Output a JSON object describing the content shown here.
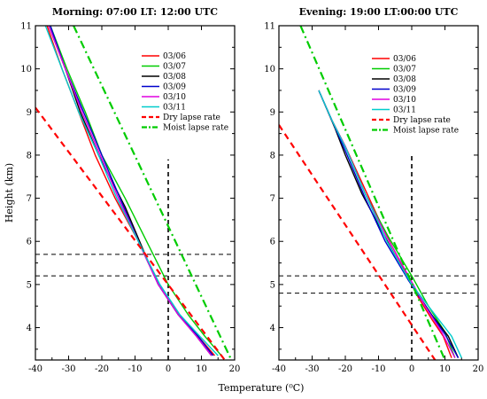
{
  "figure": {
    "xlabel": "Temperature (⁰C)",
    "ylabel": "Height (km)"
  },
  "chart_data": [
    {
      "type": "line",
      "title": "Morning: 07:00 LT: 12:00 UTC",
      "xlim": [
        -40,
        20
      ],
      "ylim": [
        3.25,
        11
      ],
      "xticks": [
        -40,
        -30,
        -20,
        -10,
        0,
        10,
        20
      ],
      "yticks": [
        4,
        5,
        6,
        7,
        8,
        9,
        10,
        11
      ],
      "xlabel": "Temperature (⁰C)",
      "ylabel": "Height (km)",
      "legend_position": "top-right",
      "grid": false,
      "series": [
        {
          "name": "03/06",
          "color": "#ff0000",
          "dash": "solid",
          "points": [
            [
              -36.5,
              11
            ],
            [
              -32,
              10
            ],
            [
              -27,
              9
            ],
            [
              -22,
              8
            ],
            [
              -16,
              7
            ],
            [
              -9,
              6
            ],
            [
              -3,
              5
            ],
            [
              3,
              4.3
            ],
            [
              9,
              3.8
            ],
            [
              14,
              3.35
            ]
          ]
        },
        {
          "name": "03/07",
          "color": "#00cc00",
          "dash": "solid",
          "points": [
            [
              -35.5,
              11
            ],
            [
              -30.5,
              10
            ],
            [
              -25,
              9
            ],
            [
              -20,
              8
            ],
            [
              -13,
              7
            ],
            [
              -6.5,
              6
            ],
            [
              0,
              5
            ],
            [
              6,
              4.3
            ],
            [
              11,
              3.8
            ],
            [
              16,
              3.35
            ]
          ]
        },
        {
          "name": "03/08",
          "color": "#000000",
          "dash": "solid",
          "points": [
            [
              -36,
              11
            ],
            [
              -31,
              10
            ],
            [
              -26.5,
              9
            ],
            [
              -21,
              8
            ],
            [
              -15,
              7.1
            ],
            [
              -13,
              6.8
            ],
            [
              -7,
              5.7
            ],
            [
              -3,
              5
            ],
            [
              3,
              4.3
            ],
            [
              8.5,
              3.8
            ],
            [
              13,
              3.35
            ]
          ]
        },
        {
          "name": "03/09",
          "color": "#0000cc",
          "dash": "solid",
          "points": [
            [
              -35.5,
              11
            ],
            [
              -31,
              10
            ],
            [
              -25.5,
              9
            ],
            [
              -20,
              8
            ],
            [
              -14.5,
              7
            ],
            [
              -9,
              6
            ],
            [
              -3,
              5
            ],
            [
              3,
              4.3
            ],
            [
              9,
              3.8
            ],
            [
              13.5,
              3.35
            ]
          ]
        },
        {
          "name": "03/10",
          "color": "#e000e0",
          "dash": "solid",
          "points": [
            [
              -36,
              11
            ],
            [
              -31,
              10
            ],
            [
              -26,
              9
            ],
            [
              -20.5,
              8
            ],
            [
              -15,
              7
            ],
            [
              -9,
              6
            ],
            [
              -3,
              5
            ],
            [
              3,
              4.3
            ],
            [
              8.5,
              3.8
            ],
            [
              13,
              3.35
            ]
          ]
        },
        {
          "name": "03/11",
          "color": "#00cccc",
          "dash": "solid",
          "points": [
            [
              -37,
              11
            ],
            [
              -32,
              10
            ],
            [
              -27,
              9
            ],
            [
              -21,
              8
            ],
            [
              -15.5,
              7
            ],
            [
              -9,
              6
            ],
            [
              -2.5,
              5
            ],
            [
              3.5,
              4.3
            ],
            [
              9.5,
              3.8
            ],
            [
              15,
              3.35
            ]
          ]
        },
        {
          "name": "Dry lapse rate",
          "color": "#ff0000",
          "dash": "dash",
          "points": [
            [
              -40,
              9.1
            ],
            [
              17,
              3.25
            ]
          ]
        },
        {
          "name": "Moist lapse rate",
          "color": "#00cc00",
          "dash": "dashdot",
          "points": [
            [
              -28.5,
              11
            ],
            [
              19,
              3.25
            ]
          ]
        }
      ],
      "reference_lines": {
        "vertical_x": 0,
        "vertical_y_max": 7.9,
        "horizontal_y": [
          5.7,
          5.2
        ]
      }
    },
    {
      "type": "line",
      "title": "Evening: 19:00 LT:00:00 UTC",
      "xlim": [
        -40,
        20
      ],
      "ylim": [
        3.25,
        11
      ],
      "xticks": [
        -40,
        -30,
        -20,
        -10,
        0,
        10,
        20
      ],
      "yticks": [
        4,
        5,
        6,
        7,
        8,
        9,
        10,
        11
      ],
      "xlabel": "Temperature (⁰C)",
      "ylabel": "",
      "legend_position": "top-right",
      "grid": false,
      "series": [
        {
          "name": "03/06",
          "color": "#ff0000",
          "dash": "solid",
          "points": [
            [
              -28,
              9.5
            ],
            [
              -24,
              8.8
            ],
            [
              -20,
              8.2
            ],
            [
              -14,
              7.2
            ],
            [
              -8,
              6.2
            ],
            [
              -2,
              5.3
            ],
            [
              2,
              4.7
            ],
            [
              6,
              4.2
            ],
            [
              9.5,
              3.8
            ],
            [
              12,
              3.3
            ]
          ]
        },
        {
          "name": "03/07",
          "color": "#00cc00",
          "dash": "solid",
          "points": [
            [
              -28,
              9.5
            ],
            [
              -24,
              8.8
            ],
            [
              -20,
              8.2
            ],
            [
              -14,
              7.1
            ],
            [
              -7,
              6.1
            ],
            [
              0,
              5.2
            ],
            [
              5,
              4.5
            ],
            [
              10,
              3.9
            ],
            [
              13,
              3.3
            ]
          ]
        },
        {
          "name": "03/08",
          "color": "#000000",
          "dash": "solid",
          "points": [
            [
              -28,
              9.5
            ],
            [
              -23,
              8.6
            ],
            [
              -20,
              8.0
            ],
            [
              -15,
              7.1
            ],
            [
              -8,
              6.1
            ],
            [
              -1,
              5.1
            ],
            [
              6,
              4.3
            ],
            [
              11,
              3.8
            ],
            [
              14,
              3.3
            ]
          ]
        },
        {
          "name": "03/09",
          "color": "#0000cc",
          "dash": "solid",
          "points": [
            [
              -28,
              9.5
            ],
            [
              -24,
              8.8
            ],
            [
              -20,
              8.1
            ],
            [
              -14,
              7.0
            ],
            [
              -8,
              6.0
            ],
            [
              -1,
              5.1
            ],
            [
              5,
              4.4
            ],
            [
              10,
              3.85
            ],
            [
              14,
              3.3
            ]
          ]
        },
        {
          "name": "03/10",
          "color": "#e000e0",
          "dash": "solid",
          "points": [
            [
              -28,
              9.5
            ],
            [
              -24,
              8.8
            ],
            [
              -20,
              8.2
            ],
            [
              -14,
              7.1
            ],
            [
              -7.5,
              6.1
            ],
            [
              -1,
              5.2
            ],
            [
              4,
              4.5
            ],
            [
              9,
              3.9
            ],
            [
              13,
              3.3
            ]
          ]
        },
        {
          "name": "03/11",
          "color": "#00cccc",
          "dash": "solid",
          "points": [
            [
              -28,
              9.5
            ],
            [
              -24,
              8.8
            ],
            [
              -19.5,
              8.1
            ],
            [
              -14,
              7.1
            ],
            [
              -7.5,
              6.0
            ],
            [
              0,
              5.0
            ],
            [
              7,
              4.3
            ],
            [
              12,
              3.8
            ],
            [
              15,
              3.3
            ]
          ]
        },
        {
          "name": "Dry lapse rate",
          "color": "#ff0000",
          "dash": "dash",
          "points": [
            [
              -40,
              8.7
            ],
            [
              7,
              3.25
            ]
          ]
        },
        {
          "name": "Moist lapse rate",
          "color": "#00cc00",
          "dash": "dashdot",
          "points": [
            [
              -33.5,
              11
            ],
            [
              10,
              3.25
            ]
          ]
        }
      ],
      "reference_lines": {
        "vertical_x": 0,
        "vertical_y_max": 8.0,
        "horizontal_y": [
          5.2,
          4.8
        ]
      }
    }
  ]
}
